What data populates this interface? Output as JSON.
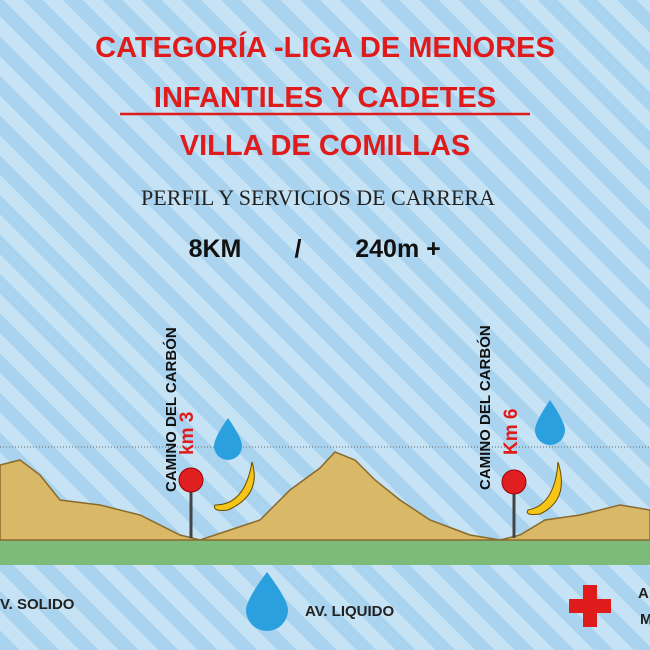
{
  "title": {
    "line1": "CATEGORÍA -LIGA DE MENORES",
    "line2": "INFANTILES Y CADETES",
    "line3": "VILLA DE COMILLAS"
  },
  "subtitle": "PERFIL Y SERVICIOS DE CARRERA",
  "stats": {
    "distance": "8KM",
    "separator": "/",
    "elevation": "240m +"
  },
  "markers": [
    {
      "place": "CAMINO DEL CARBÓN",
      "km": "km 3"
    },
    {
      "place": "CAMINO DEL CARBÓN",
      "km": "Km 6"
    }
  ],
  "legend": {
    "solid": "V. SOLIDO",
    "liquid": "AV. LIQUIDO",
    "medical": [
      "A",
      "M"
    ]
  }
}
